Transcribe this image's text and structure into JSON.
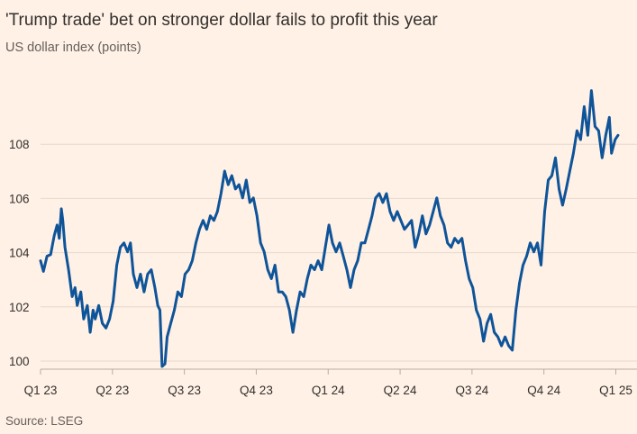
{
  "chart_data": {
    "type": "line",
    "title": "'Trump trade' bet on stronger dollar fails to profit this year",
    "subtitle": "US dollar index (points)",
    "source": "Source: LSEG",
    "x": [
      0,
      0.04,
      0.09,
      0.14,
      0.19,
      0.23,
      0.26,
      0.29,
      0.31,
      0.34,
      0.39,
      0.44,
      0.48,
      0.51,
      0.56,
      0.6,
      0.65,
      0.69,
      0.73,
      0.76,
      0.81,
      0.86,
      0.91,
      0.96,
      1.01,
      1.06,
      1.11,
      1.16,
      1.21,
      1.25,
      1.29,
      1.34,
      1.39,
      1.44,
      1.49,
      1.54,
      1.59,
      1.63,
      1.66,
      1.69,
      1.73,
      1.76,
      1.81,
      1.86,
      1.91,
      1.96,
      2.01,
      2.06,
      2.11,
      2.16,
      2.21,
      2.26,
      2.31,
      2.36,
      2.41,
      2.46,
      2.51,
      2.56,
      2.61,
      2.66,
      2.71,
      2.76,
      2.81,
      2.86,
      2.91,
      2.96,
      3.01,
      3.06,
      3.11,
      3.16,
      3.21,
      3.26,
      3.31,
      3.36,
      3.41,
      3.46,
      3.51,
      3.56,
      3.61,
      3.66,
      3.71,
      3.76,
      3.81,
      3.86,
      3.91,
      3.96,
      4.01,
      4.06,
      4.11,
      4.16,
      4.21,
      4.26,
      4.31,
      4.36,
      4.41,
      4.46,
      4.51,
      4.56,
      4.61,
      4.66,
      4.71,
      4.76,
      4.81,
      4.86,
      4.91,
      4.96,
      5.01,
      5.06,
      5.11,
      5.16,
      5.21,
      5.26,
      5.31,
      5.36,
      5.41,
      5.46,
      5.51,
      5.56,
      5.61,
      5.66,
      5.71,
      5.76,
      5.81,
      5.86,
      5.91,
      5.96,
      6.01,
      6.06,
      6.11,
      6.16,
      6.21,
      6.26,
      6.31,
      6.36,
      6.41,
      6.46,
      6.51,
      6.56,
      6.61,
      6.66,
      6.71,
      6.76,
      6.81,
      6.86,
      6.91,
      6.96,
      7.01,
      7.06,
      7.11,
      7.16,
      7.21,
      7.26,
      7.31,
      7.36,
      7.41,
      7.46,
      7.51,
      7.56,
      7.61,
      7.66,
      7.71,
      7.76,
      7.81,
      7.86,
      7.91,
      7.94,
      7.99,
      8.03
    ],
    "series": [
      {
        "name": "US dollar index",
        "color": "#0f5499",
        "values": [
          103.7,
          103.31,
          103.87,
          103.93,
          104.63,
          105.02,
          104.53,
          105.62,
          105.19,
          104.2,
          103.37,
          102.38,
          102.71,
          102.05,
          102.55,
          101.55,
          102.05,
          101.06,
          101.88,
          101.55,
          102.05,
          101.39,
          101.22,
          101.55,
          102.21,
          103.54,
          104.2,
          104.36,
          104.03,
          104.36,
          103.21,
          102.71,
          103.21,
          102.55,
          103.21,
          103.37,
          102.71,
          102.05,
          101.88,
          99.8,
          99.9,
          100.89,
          101.39,
          101.88,
          102.55,
          102.38,
          103.21,
          103.37,
          103.7,
          104.36,
          104.86,
          105.19,
          104.86,
          105.36,
          105.19,
          105.52,
          106.18,
          107.01,
          106.51,
          106.84,
          106.35,
          106.51,
          106.02,
          106.68,
          105.85,
          106.02,
          105.36,
          104.36,
          104.03,
          103.37,
          103.04,
          103.54,
          102.55,
          102.55,
          102.38,
          101.88,
          101.06,
          101.88,
          102.55,
          102.38,
          103.04,
          103.54,
          103.37,
          103.7,
          103.37,
          104.2,
          105.02,
          104.36,
          104.03,
          104.36,
          103.87,
          103.37,
          102.71,
          103.37,
          103.7,
          104.36,
          104.36,
          104.86,
          105.36,
          106.02,
          106.18,
          105.85,
          106.18,
          105.52,
          105.19,
          105.52,
          105.19,
          104.86,
          105.02,
          105.19,
          104.2,
          104.69,
          105.36,
          104.69,
          105.02,
          105.52,
          106.02,
          105.36,
          105.02,
          104.36,
          104.2,
          104.53,
          104.36,
          104.53,
          103.7,
          103.04,
          102.71,
          101.88,
          101.55,
          100.73,
          101.39,
          101.72,
          101.06,
          100.89,
          100.56,
          100.89,
          100.56,
          100.4,
          101.88,
          102.88,
          103.54,
          103.87,
          104.36,
          104.03,
          104.36,
          103.54,
          105.52,
          106.68,
          106.84,
          107.5,
          106.35,
          105.75,
          106.35,
          107.01,
          107.67,
          108.5,
          108.17,
          109.39,
          108.33,
          109.98,
          108.66,
          108.5,
          107.5,
          108.33,
          108.99,
          107.67,
          108.17,
          108.33
        ]
      }
    ],
    "xlim": [
      0,
      8.05
    ],
    "xticks": [
      {
        "value": 0,
        "label": "Q1 23"
      },
      {
        "value": 1,
        "label": "Q2 23"
      },
      {
        "value": 2,
        "label": "Q3 23"
      },
      {
        "value": 3,
        "label": "Q4 23"
      },
      {
        "value": 4,
        "label": "Q1 24"
      },
      {
        "value": 5,
        "label": "Q2 24"
      },
      {
        "value": 6,
        "label": "Q3 24"
      },
      {
        "value": 7,
        "label": "Q4 24"
      },
      {
        "value": 8,
        "label": "Q1 25"
      }
    ],
    "ylim": [
      99.7,
      110.5
    ],
    "yticks": [
      100,
      102,
      104,
      106,
      108
    ],
    "grid": true
  }
}
